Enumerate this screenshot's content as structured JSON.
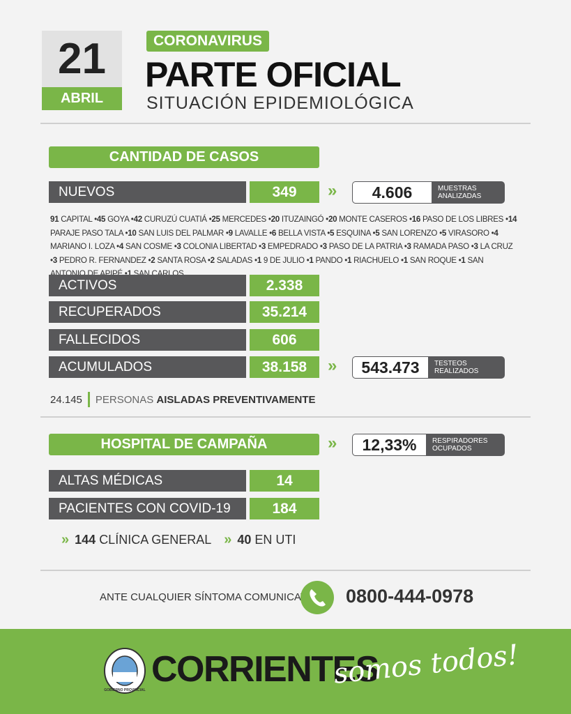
{
  "header": {
    "day": "21",
    "month": "ABRIL",
    "tag": "CORONAVIRUS",
    "title": "PARTE OFICIAL",
    "subtitle": "SITUACIÓN EPIDEMIOLÓGICA"
  },
  "cases": {
    "title": "CANTIDAD DE CASOS",
    "new": {
      "label": "NUEVOS",
      "value": "349"
    },
    "samples": {
      "value": "4.606",
      "label": "MUESTRAS ANALIZADAS"
    },
    "breakdown": [
      {
        "count": "91",
        "place": "CAPITAL"
      },
      {
        "count": "45",
        "place": "GOYA"
      },
      {
        "count": "42",
        "place": "CURUZÚ CUATIÁ"
      },
      {
        "count": "25",
        "place": "MERCEDES"
      },
      {
        "count": "20",
        "place": "ITUZAINGÓ"
      },
      {
        "count": "20",
        "place": "MONTE CASEROS"
      },
      {
        "count": "16",
        "place": "PASO DE LOS LIBRES"
      },
      {
        "count": "14",
        "place": "PARAJE PASO TALA"
      },
      {
        "count": "10",
        "place": "SAN LUIS DEL PALMAR"
      },
      {
        "count": "9",
        "place": "LAVALLE"
      },
      {
        "count": "6",
        "place": "BELLA VISTA"
      },
      {
        "count": "5",
        "place": "ESQUINA"
      },
      {
        "count": "5",
        "place": "SAN LORENZO"
      },
      {
        "count": "5",
        "place": "VIRASORO"
      },
      {
        "count": "4",
        "place": "MARIANO I. LOZA"
      },
      {
        "count": "4",
        "place": "SAN COSME"
      },
      {
        "count": "3",
        "place": "COLONIA LIBERTAD"
      },
      {
        "count": "3",
        "place": "EMPEDRADO"
      },
      {
        "count": "3",
        "place": "PASO DE LA PATRIA"
      },
      {
        "count": "3",
        "place": "RAMADA PASO"
      },
      {
        "count": "3",
        "place": "LA CRUZ"
      },
      {
        "count": "3",
        "place": "PEDRO R. FERNANDEZ"
      },
      {
        "count": "2",
        "place": "SANTA ROSA"
      },
      {
        "count": "2",
        "place": "SALADAS"
      },
      {
        "count": "1",
        "place": "9 DE JULIO"
      },
      {
        "count": "1",
        "place": "PANDO"
      },
      {
        "count": "1",
        "place": "RIACHUELO"
      },
      {
        "count": "1",
        "place": "SAN ROQUE"
      },
      {
        "count": "1",
        "place": "SAN ANTONIO DE APIPÉ"
      },
      {
        "count": "1",
        "place": "SAN CARLOS"
      }
    ],
    "stats": [
      {
        "label": "ACTIVOS",
        "value": "2.338"
      },
      {
        "label": "RECUPERADOS",
        "value": "35.214"
      },
      {
        "label": "FALLECIDOS",
        "value": "606"
      },
      {
        "label": "ACUMULADOS",
        "value": "38.158"
      }
    ],
    "tests": {
      "value": "543.473",
      "label": "TESTEOS REALIZADOS"
    },
    "isolated": {
      "value": "24.145",
      "label": "PERSONAS",
      "label_bold": "AISLADAS PREVENTIVAMENTE"
    }
  },
  "hospital": {
    "title": "HOSPITAL DE CAMPAÑA",
    "respirators": {
      "value": "12,33%",
      "label": "RESPIRADORES OCUPADOS"
    },
    "stats": [
      {
        "label": "ALTAS MÉDICAS",
        "value": "14"
      },
      {
        "label": "PACIENTES CON COVID-19",
        "value": "184"
      }
    ],
    "split": [
      {
        "value": "144",
        "label": "CLÍNICA GENERAL"
      },
      {
        "value": "40",
        "label": "EN UTI"
      }
    ]
  },
  "contact": {
    "text": "ANTE CUALQUIER SÍNTOMA COMUNICATE AL",
    "phone": "0800-444-0978"
  },
  "footer": {
    "brand": "CORRIENTES",
    "slogan": "somos todos!",
    "seal": "GOBIERNO PROVINCIAL"
  }
}
